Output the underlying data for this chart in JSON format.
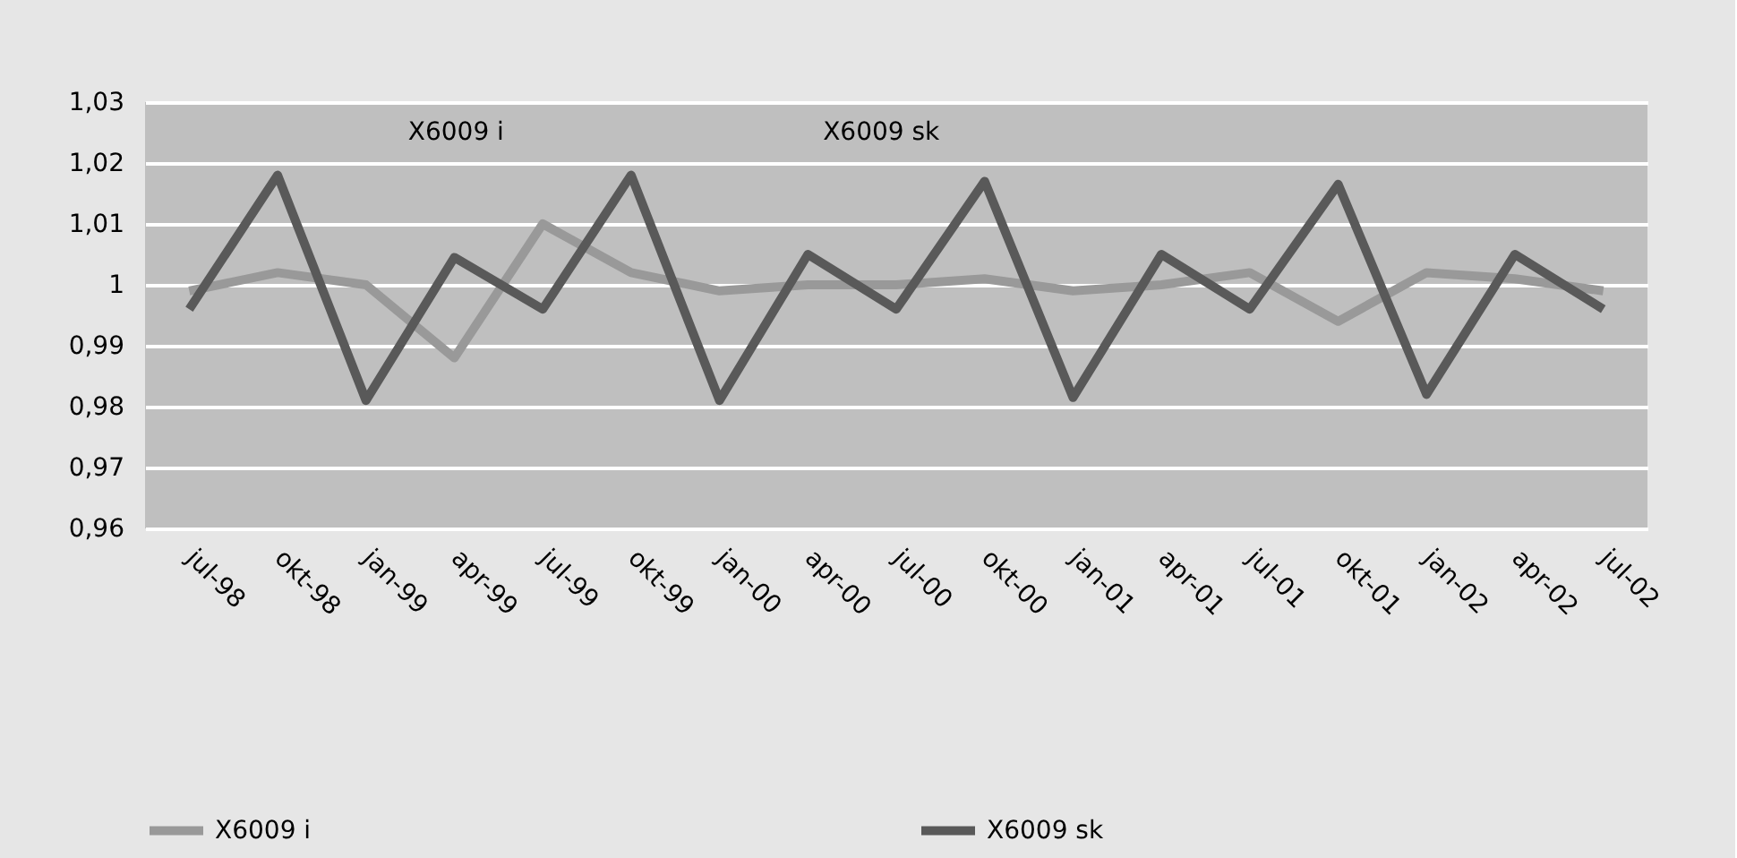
{
  "chart_data": {
    "type": "line",
    "categories": [
      "jul-98",
      "okt-98",
      "jan-99",
      "apr-99",
      "jul-99",
      "okt-99",
      "jan-00",
      "apr-00",
      "jul-00",
      "okt-00",
      "jan-01",
      "apr-01",
      "jul-01",
      "okt-01",
      "jan-02",
      "apr-02",
      "jul-02"
    ],
    "series": [
      {
        "name": "X6009 i",
        "color": "#999999",
        "values": [
          0.999,
          1.002,
          1.0,
          0.988,
          1.01,
          1.002,
          0.999,
          1.0,
          1.0,
          1.001,
          0.999,
          1.0,
          1.002,
          0.994,
          1.002,
          1.001,
          0.999
        ]
      },
      {
        "name": "X6009 sk",
        "color": "#595959",
        "values": [
          0.996,
          1.018,
          0.981,
          1.0045,
          0.996,
          1.018,
          0.981,
          1.005,
          0.996,
          1.017,
          0.9815,
          1.005,
          0.996,
          1.0165,
          0.982,
          1.005,
          0.996
        ]
      }
    ],
    "ylim": [
      0.96,
      1.03
    ],
    "yticks": [
      {
        "value": 0.96,
        "label": "0,96"
      },
      {
        "value": 0.97,
        "label": "0,97"
      },
      {
        "value": 0.98,
        "label": "0,98"
      },
      {
        "value": 0.99,
        "label": "0,99"
      },
      {
        "value": 1,
        "label": "1"
      },
      {
        "value": 1.01,
        "label": "1,01"
      },
      {
        "value": 1.02,
        "label": "1,02"
      },
      {
        "value": 1.03,
        "label": "1,03"
      }
    ],
    "annotations": [
      "X6009 i",
      "X6009 sk"
    ],
    "grid": "y",
    "legend": "bottom",
    "marker": "none",
    "line_style": "solid"
  }
}
